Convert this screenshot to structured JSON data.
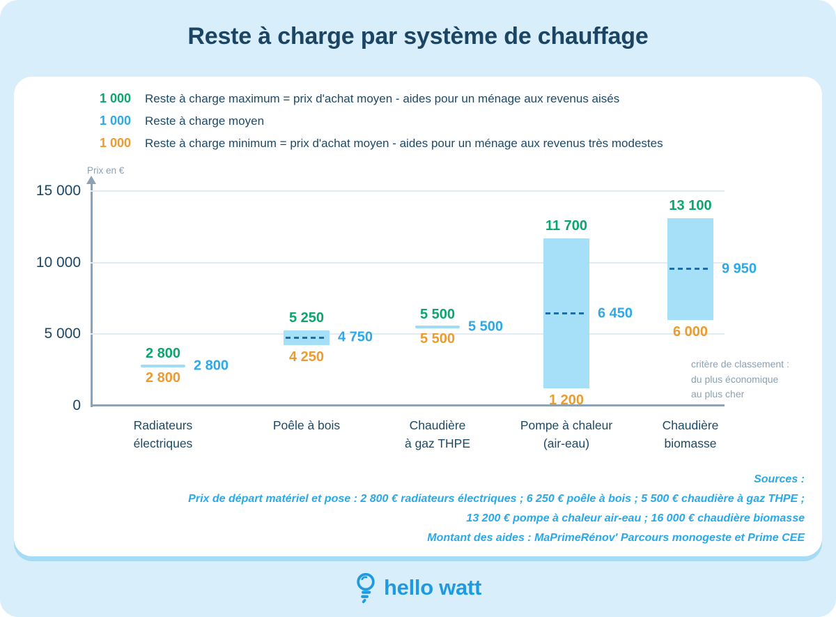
{
  "title": "Reste à charge par système de chauffage",
  "legend": {
    "items": [
      {
        "value": "1 000",
        "color": "#0BA66E",
        "label": "Reste à charge maximum = prix d'achat moyen - aides pour un ménage aux revenus aisés"
      },
      {
        "value": "1 000",
        "color": "#2BA9E9",
        "label": "Reste à charge moyen"
      },
      {
        "value": "1 000",
        "color": "#EC9B2D",
        "label": "Reste à charge minimum = prix d'achat moyen - aides pour un ménage aux revenus très modestes"
      }
    ]
  },
  "chart_data": {
    "type": "bar",
    "subtype": "floating-range-bar",
    "title": "Reste à charge par système de chauffage",
    "ylabel": "Prix en €",
    "ylim": [
      0,
      15000
    ],
    "yticks": [
      0,
      5000,
      10000,
      15000
    ],
    "grid": true,
    "legend_position": "top-left",
    "categories": [
      "Radiateurs électriques",
      "Poêle à bois",
      "Chaudière à gaz THPE",
      "Pompe à chaleur (air-eau)",
      "Chaudière biomasse"
    ],
    "category_label_lines": [
      [
        "Radiateurs",
        "électriques"
      ],
      [
        "Poêle à bois"
      ],
      [
        "Chaudière",
        "à gaz THPE"
      ],
      [
        "Pompe à chaleur",
        "(air-eau)"
      ],
      [
        "Chaudière",
        "biomasse"
      ]
    ],
    "series": [
      {
        "name": "Reste à charge maximum",
        "color": "#0BA66E",
        "values": [
          2800,
          5250,
          5500,
          11700,
          13100
        ]
      },
      {
        "name": "Reste à charge moyen",
        "color": "#2BA9E9",
        "values": [
          2800,
          4750,
          5500,
          6450,
          9950
        ]
      },
      {
        "name": "Reste à charge minimum",
        "color": "#EC9B2D",
        "values": [
          2800,
          4250,
          5500,
          1200,
          6000
        ]
      }
    ],
    "annotation": [
      "critère de classement :",
      "du plus économique",
      "au plus cher"
    ]
  },
  "sources": {
    "lines": [
      "Sources :",
      "Prix de départ matériel et pose : 2 800 € radiateurs électriques ; 6 250 € poêle à bois ; 5 500 € chaudière à gaz THPE ;",
      "13 200 € pompe à chaleur air-eau ; 16 000 € chaudière biomasse",
      "Montant des aides : MaPrimeRénov' Parcours monogeste et Prime CEE"
    ]
  },
  "footer": {
    "brand": "hello watt"
  },
  "colors": {
    "background": "#D9EEFB",
    "card": "#FFFFFF",
    "card_shadow": "#A6DBF5",
    "navy_text": "#1B4766",
    "green": "#0BA66E",
    "blue": "#2BA9E9",
    "orange": "#EC9B2D",
    "bar_fill": "#A5DFF8",
    "dashed_mean_line": "#1A6FA8",
    "gray_text": "#8CA0B3",
    "axis": "#8EA2B4",
    "gridline": "#E2EBF2",
    "logo_blue": "#1E9BE0"
  }
}
